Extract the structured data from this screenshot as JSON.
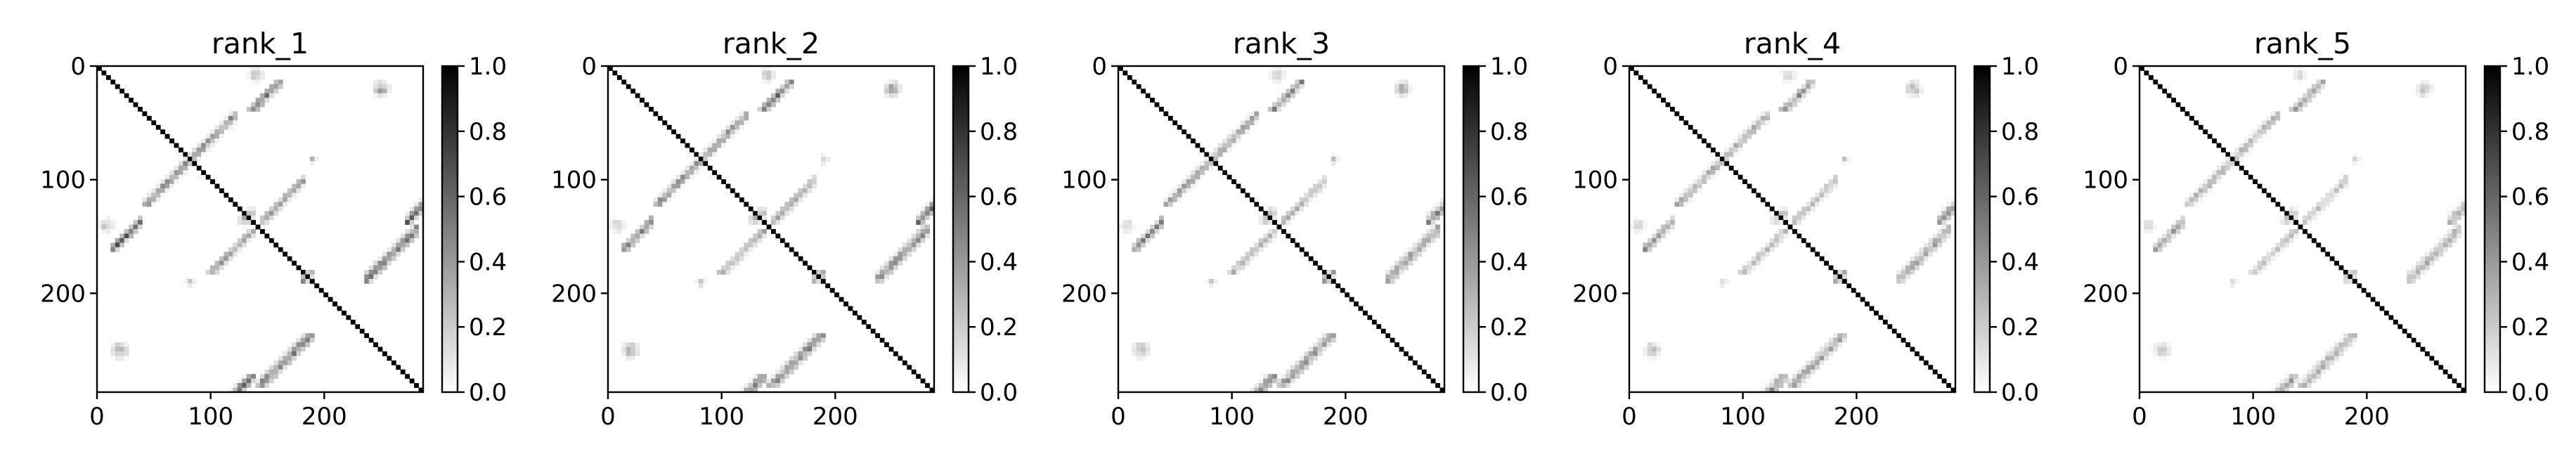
{
  "chart_data": [
    {
      "type": "heatmap",
      "title": "rank_1",
      "x_range": [
        0,
        287
      ],
      "y_range": [
        0,
        287
      ],
      "y_inverted": true,
      "xticks": [
        0,
        100,
        200
      ],
      "yticks": [
        0,
        100,
        200
      ],
      "colorbar": {
        "range": [
          0.0,
          1.0
        ],
        "ticks": [
          "0.0",
          "0.2",
          "0.4",
          "0.6",
          "0.8",
          "1.0"
        ],
        "colormap": "gray_r"
      },
      "value_range": [
        0,
        1
      ],
      "description_features": {
        "diagonal": {
          "from": 0,
          "to": 287,
          "value": 1.0
        },
        "stem_helices": [
          {
            "i_range": [
              10,
              40
            ],
            "j_sum": 175,
            "value": 0.85
          },
          {
            "i_range": [
              40,
              85
            ],
            "j_sum": 165,
            "value": 0.85
          },
          {
            "i_range": [
              100,
              140
            ],
            "j_sum": 410,
            "value": 0.8
          },
          {
            "i_range": [
              140,
              185
            ],
            "j_sum": 425,
            "value": 0.8
          },
          {
            "i_range": [
              185,
              230
            ],
            "j_sum": 370,
            "value": 0.6
          }
        ]
      }
    },
    {
      "type": "heatmap",
      "title": "rank_2",
      "x_range": [
        0,
        287
      ],
      "y_range": [
        0,
        287
      ],
      "y_inverted": true,
      "xticks": [
        0,
        100,
        200
      ],
      "yticks": [
        0,
        100,
        200
      ],
      "colorbar": {
        "range": [
          0.0,
          1.0
        ],
        "ticks": [
          "0.0",
          "0.2",
          "0.4",
          "0.6",
          "0.8",
          "1.0"
        ],
        "colormap": "gray_r"
      },
      "value_range": [
        0,
        1
      ]
    },
    {
      "type": "heatmap",
      "title": "rank_3",
      "x_range": [
        0,
        287
      ],
      "y_range": [
        0,
        287
      ],
      "y_inverted": true,
      "xticks": [
        0,
        100,
        200
      ],
      "yticks": [
        0,
        100,
        200
      ],
      "colorbar": {
        "range": [
          0.0,
          1.0
        ],
        "ticks": [
          "0.0",
          "0.2",
          "0.4",
          "0.6",
          "0.8",
          "1.0"
        ],
        "colormap": "gray_r"
      },
      "value_range": [
        0,
        1
      ]
    },
    {
      "type": "heatmap",
      "title": "rank_4",
      "x_range": [
        0,
        287
      ],
      "y_range": [
        0,
        287
      ],
      "y_inverted": true,
      "xticks": [
        0,
        100,
        200
      ],
      "yticks": [
        0,
        100,
        200
      ],
      "colorbar": {
        "range": [
          0.0,
          1.0
        ],
        "ticks": [
          "0.0",
          "0.2",
          "0.4",
          "0.6",
          "0.8",
          "1.0"
        ],
        "colormap": "gray_r"
      },
      "value_range": [
        0,
        1
      ]
    },
    {
      "type": "heatmap",
      "title": "rank_5",
      "x_range": [
        0,
        287
      ],
      "y_range": [
        0,
        287
      ],
      "y_inverted": true,
      "xticks": [
        0,
        100,
        200
      ],
      "yticks": [
        0,
        100,
        200
      ],
      "colorbar": {
        "range": [
          0.0,
          1.0
        ],
        "ticks": [
          "0.0",
          "0.2",
          "0.4",
          "0.6",
          "0.8",
          "1.0"
        ],
        "colormap": "gray_r"
      },
      "value_range": [
        0,
        1
      ]
    }
  ]
}
